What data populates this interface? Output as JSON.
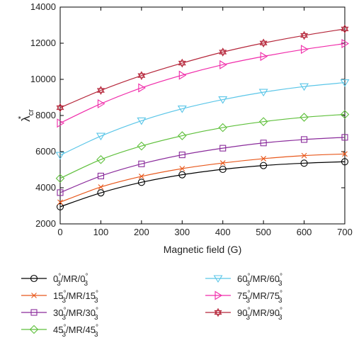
{
  "chart_data": {
    "type": "line",
    "xlabel": "Magnetic field (G)",
    "ylabel": "λ*cr",
    "ylabel_parts": {
      "main": "λ",
      "sup": "*",
      "sub": "cr"
    },
    "xlim": [
      0,
      700
    ],
    "ylim": [
      2000,
      14000
    ],
    "x_ticks": [
      0,
      100,
      200,
      300,
      400,
      500,
      600,
      700
    ],
    "y_ticks": [
      2000,
      4000,
      6000,
      8000,
      10000,
      12000,
      14000
    ],
    "x": [
      0,
      100,
      200,
      300,
      400,
      500,
      600,
      700
    ],
    "grid": false,
    "legend_position": "below",
    "series": [
      {
        "name": "0°3/MR/0°3",
        "legend_angle": "0",
        "color": "#000000",
        "marker": "circle",
        "values": [
          2950,
          3720,
          4300,
          4720,
          5020,
          5230,
          5360,
          5440
        ]
      },
      {
        "name": "15°3/MR/15°3",
        "legend_angle": "15",
        "color": "#e8581c",
        "marker": "x",
        "values": [
          3200,
          4040,
          4630,
          5060,
          5370,
          5610,
          5780,
          5870
        ]
      },
      {
        "name": "30°3/MR/30°3",
        "legend_angle": "30",
        "color": "#8a2b9b",
        "marker": "square",
        "values": [
          3730,
          4650,
          5320,
          5820,
          6190,
          6480,
          6670,
          6790
        ]
      },
      {
        "name": "45°3/MR/45°3",
        "legend_angle": "45",
        "color": "#5fc03c",
        "marker": "diamond",
        "values": [
          4520,
          5560,
          6310,
          6880,
          7330,
          7660,
          7900,
          8060
        ]
      },
      {
        "name": "60°3/MR/60°3",
        "legend_angle": "60",
        "color": "#5bc6e8",
        "marker": "triangle-down",
        "values": [
          5800,
          6860,
          7710,
          8370,
          8880,
          9290,
          9600,
          9820
        ]
      },
      {
        "name": "75°3/MR/75°3",
        "legend_angle": "75",
        "color": "#f02caa",
        "marker": "triangle-right",
        "values": [
          7580,
          8650,
          9530,
          10230,
          10810,
          11270,
          11660,
          11980
        ]
      },
      {
        "name": "90°3/MR/90°3",
        "legend_angle": "90",
        "color": "#b5263a",
        "marker": "hexagram",
        "values": [
          8430,
          9390,
          10210,
          10900,
          11510,
          12010,
          12430,
          12790
        ]
      }
    ]
  }
}
